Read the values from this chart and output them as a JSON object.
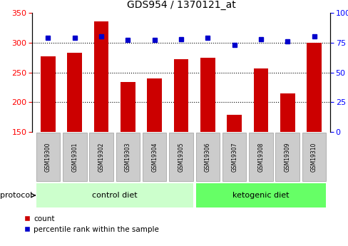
{
  "title": "GDS954 / 1370121_at",
  "samples": [
    "GSM19300",
    "GSM19301",
    "GSM19302",
    "GSM19303",
    "GSM19304",
    "GSM19305",
    "GSM19306",
    "GSM19307",
    "GSM19308",
    "GSM19309",
    "GSM19310"
  ],
  "counts": [
    277,
    283,
    336,
    234,
    240,
    272,
    275,
    179,
    256,
    215,
    300
  ],
  "percentile_ranks": [
    79,
    79,
    80,
    77,
    77,
    78,
    79,
    73,
    78,
    76,
    80
  ],
  "ylim_left": [
    150,
    350
  ],
  "ylim_right": [
    0,
    100
  ],
  "yticks_left": [
    150,
    200,
    250,
    300,
    350
  ],
  "yticks_right": [
    0,
    25,
    50,
    75,
    100
  ],
  "bar_color": "#cc0000",
  "dot_color": "#0000cc",
  "gridlines": [
    200,
    250,
    300
  ],
  "group1_label": "control diet",
  "group2_label": "ketogenic diet",
  "group1_indices": [
    0,
    1,
    2,
    3,
    4,
    5
  ],
  "group2_indices": [
    6,
    7,
    8,
    9,
    10
  ],
  "group1_color": "#ccffcc",
  "group2_color": "#66ff66",
  "protocol_label": "protocol",
  "legend_count": "count",
  "legend_percentile": "percentile rank within the sample",
  "background_color": "#ffffff",
  "tick_bg_color": "#cccccc",
  "border_color": "#888888"
}
